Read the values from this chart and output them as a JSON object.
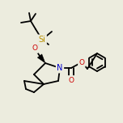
{
  "bg_color": "#ececde",
  "line_color": "#000000",
  "atom_colors": {
    "N": "#0000cc",
    "O": "#cc0000",
    "Si": "#b89000"
  },
  "line_width": 1.3,
  "font_size": 6.5,
  "figsize": [
    1.52,
    1.52
  ],
  "dpi": 100
}
